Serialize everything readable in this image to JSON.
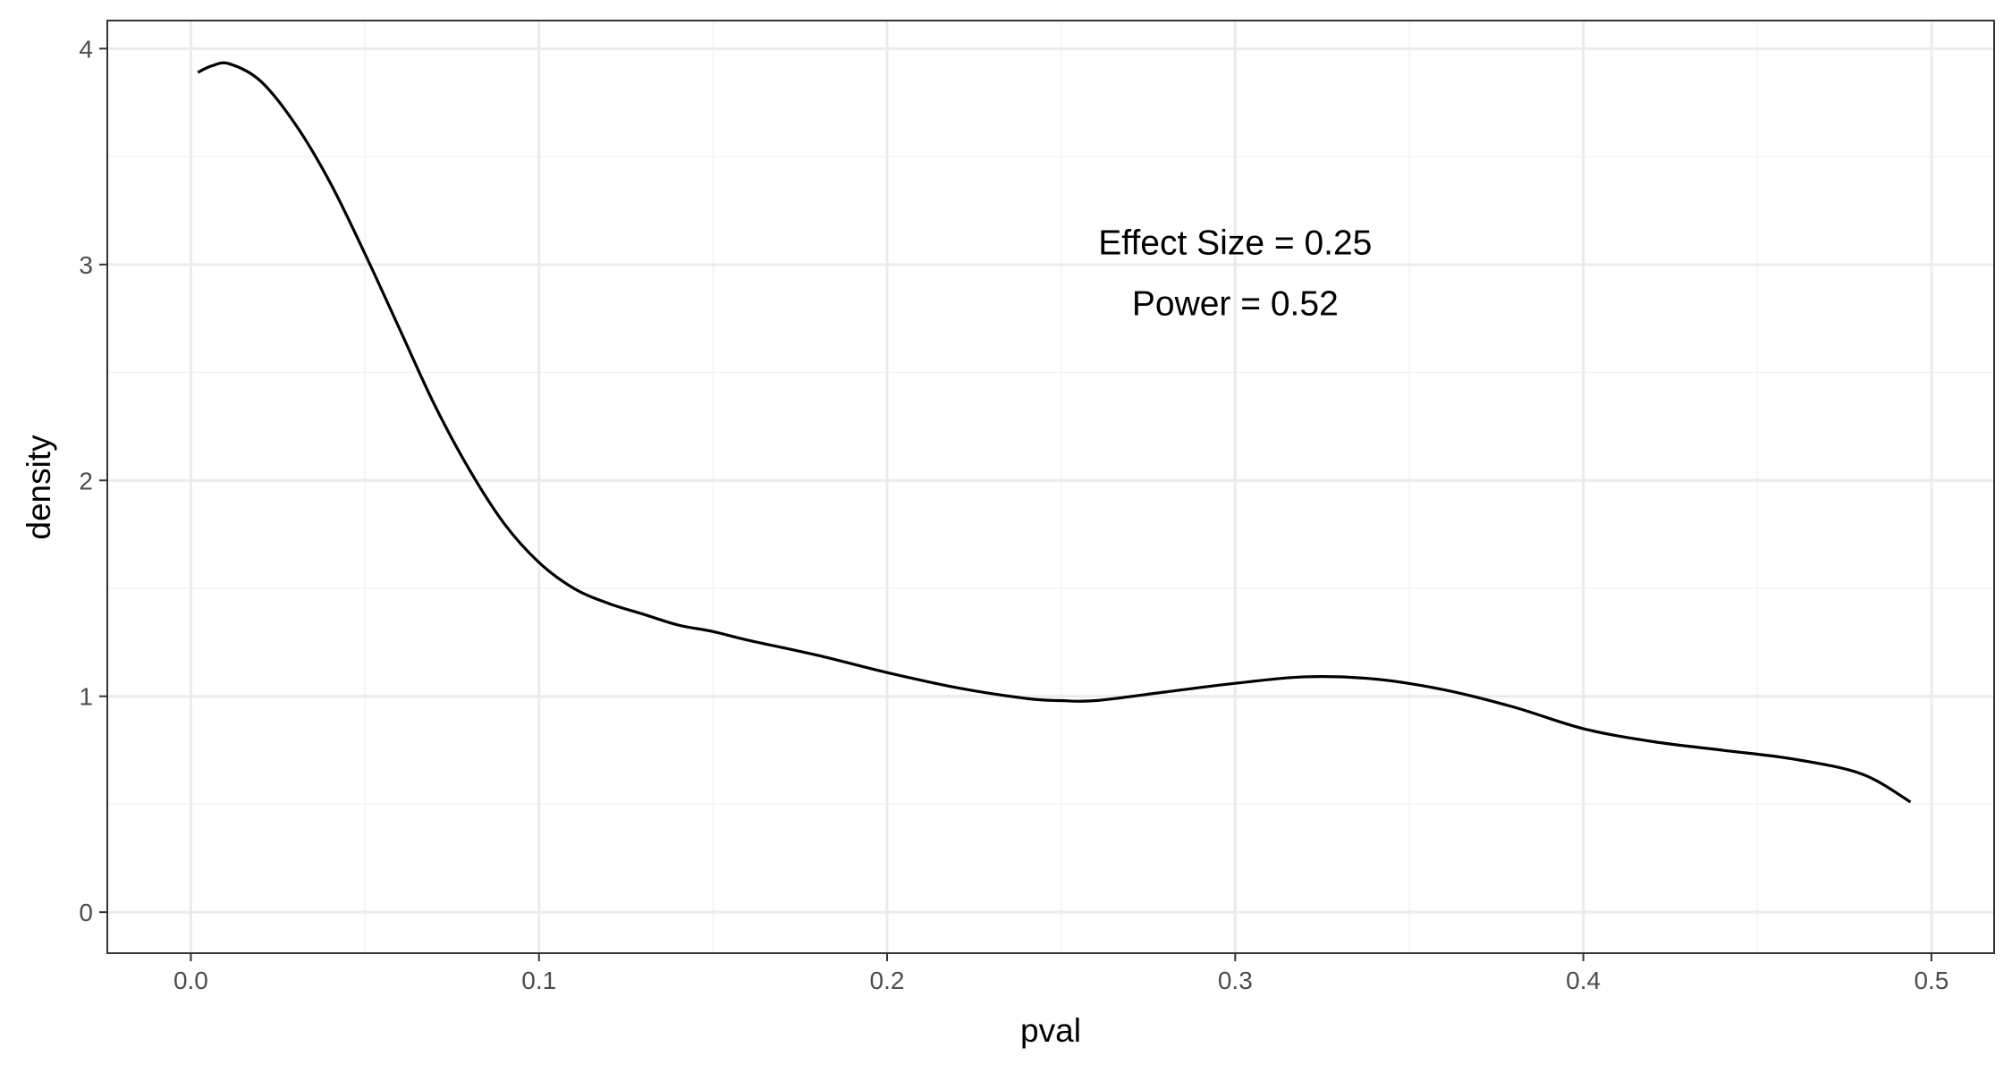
{
  "chart_data": {
    "type": "line",
    "series": [
      {
        "name": "density",
        "color": "#000000",
        "x": [
          0.002,
          0.006,
          0.011,
          0.02,
          0.03,
          0.04,
          0.05,
          0.06,
          0.07,
          0.08,
          0.09,
          0.1,
          0.11,
          0.12,
          0.13,
          0.14,
          0.15,
          0.16,
          0.18,
          0.2,
          0.22,
          0.24,
          0.25,
          0.26,
          0.28,
          0.3,
          0.32,
          0.34,
          0.36,
          0.38,
          0.4,
          0.42,
          0.44,
          0.46,
          0.48,
          0.494
        ],
        "y": [
          3.89,
          3.92,
          3.93,
          3.85,
          3.65,
          3.38,
          3.05,
          2.7,
          2.35,
          2.05,
          1.8,
          1.62,
          1.5,
          1.43,
          1.38,
          1.33,
          1.3,
          1.26,
          1.19,
          1.11,
          1.04,
          0.99,
          0.98,
          0.98,
          1.02,
          1.06,
          1.09,
          1.08,
          1.03,
          0.95,
          0.85,
          0.79,
          0.75,
          0.71,
          0.64,
          0.51
        ]
      }
    ],
    "title": "",
    "xlabel": "pval",
    "ylabel": "density",
    "xlim": [
      -0.024,
      0.518
    ],
    "ylim": [
      -0.19,
      4.13
    ],
    "xticks": [
      0.0,
      0.1,
      0.2,
      0.3,
      0.4,
      0.5
    ],
    "xtick_labels": [
      "0.0",
      "0.1",
      "0.2",
      "0.3",
      "0.4",
      "0.5"
    ],
    "yticks": [
      0,
      1,
      2,
      3,
      4
    ],
    "ytick_labels": [
      "0",
      "1",
      "2",
      "3",
      "4"
    ],
    "grid": true,
    "annotations": [
      {
        "text": "Effect Size = 0.25",
        "x": 0.3,
        "y": 3.1
      },
      {
        "text": "Power = 0.52",
        "x": 0.3,
        "y": 2.82
      }
    ]
  }
}
